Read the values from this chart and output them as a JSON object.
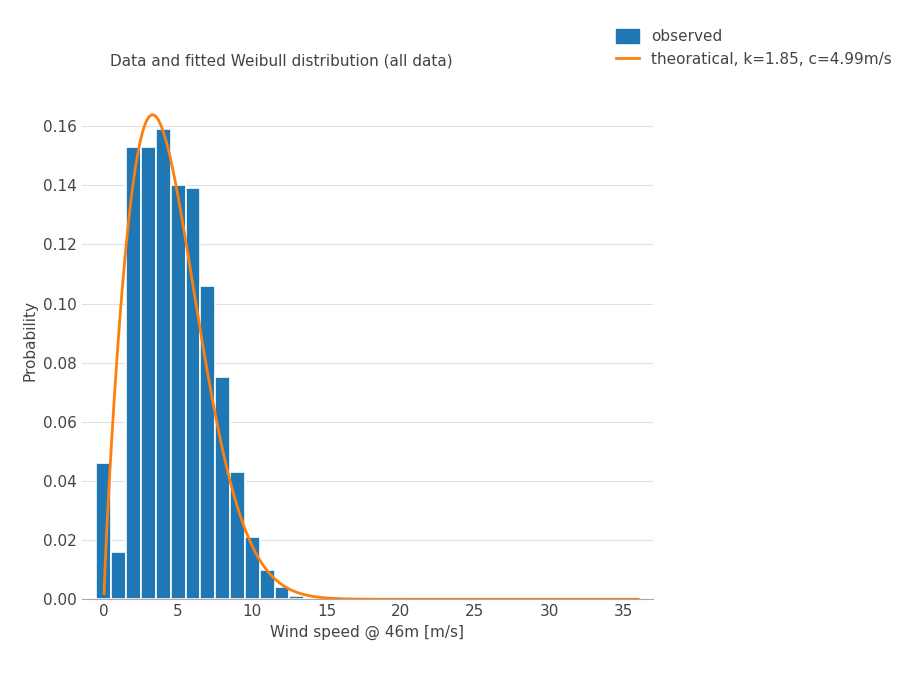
{
  "title": "Data and fitted Weibull distribution (all data)",
  "xlabel": "Wind speed @ 46m [m/s]",
  "ylabel": "Probability",
  "bar_color": "#1f77b4",
  "bar_edge_color": "white",
  "line_color": "#ff7f0e",
  "bar_centers": [
    0,
    1,
    2,
    3,
    4,
    5,
    6,
    7,
    8,
    9,
    10,
    11,
    12,
    13
  ],
  "bar_heights": [
    0.046,
    0.016,
    0.153,
    0.153,
    0.159,
    0.14,
    0.139,
    0.106,
    0.075,
    0.043,
    0.021,
    0.01,
    0.004,
    0.001
  ],
  "bar_width": 1.0,
  "weibull_k": 1.85,
  "weibull_c": 4.99,
  "xlim": [
    -1.5,
    37
  ],
  "ylim": [
    0,
    0.175
  ],
  "xticks": [
    0,
    5,
    10,
    15,
    20,
    25,
    30,
    35
  ],
  "yticks": [
    0,
    0.02,
    0.04,
    0.06,
    0.08,
    0.1,
    0.12,
    0.14,
    0.16
  ],
  "legend_observed": "observed",
  "legend_theoretical": "theoratical, k=1.85, c=4.99m/s",
  "background_color": "#ffffff",
  "plot_bg_color": "#ffffff",
  "grid_color": "#e0e0e0",
  "title_fontsize": 11,
  "label_fontsize": 11,
  "tick_fontsize": 11,
  "legend_fontsize": 11
}
